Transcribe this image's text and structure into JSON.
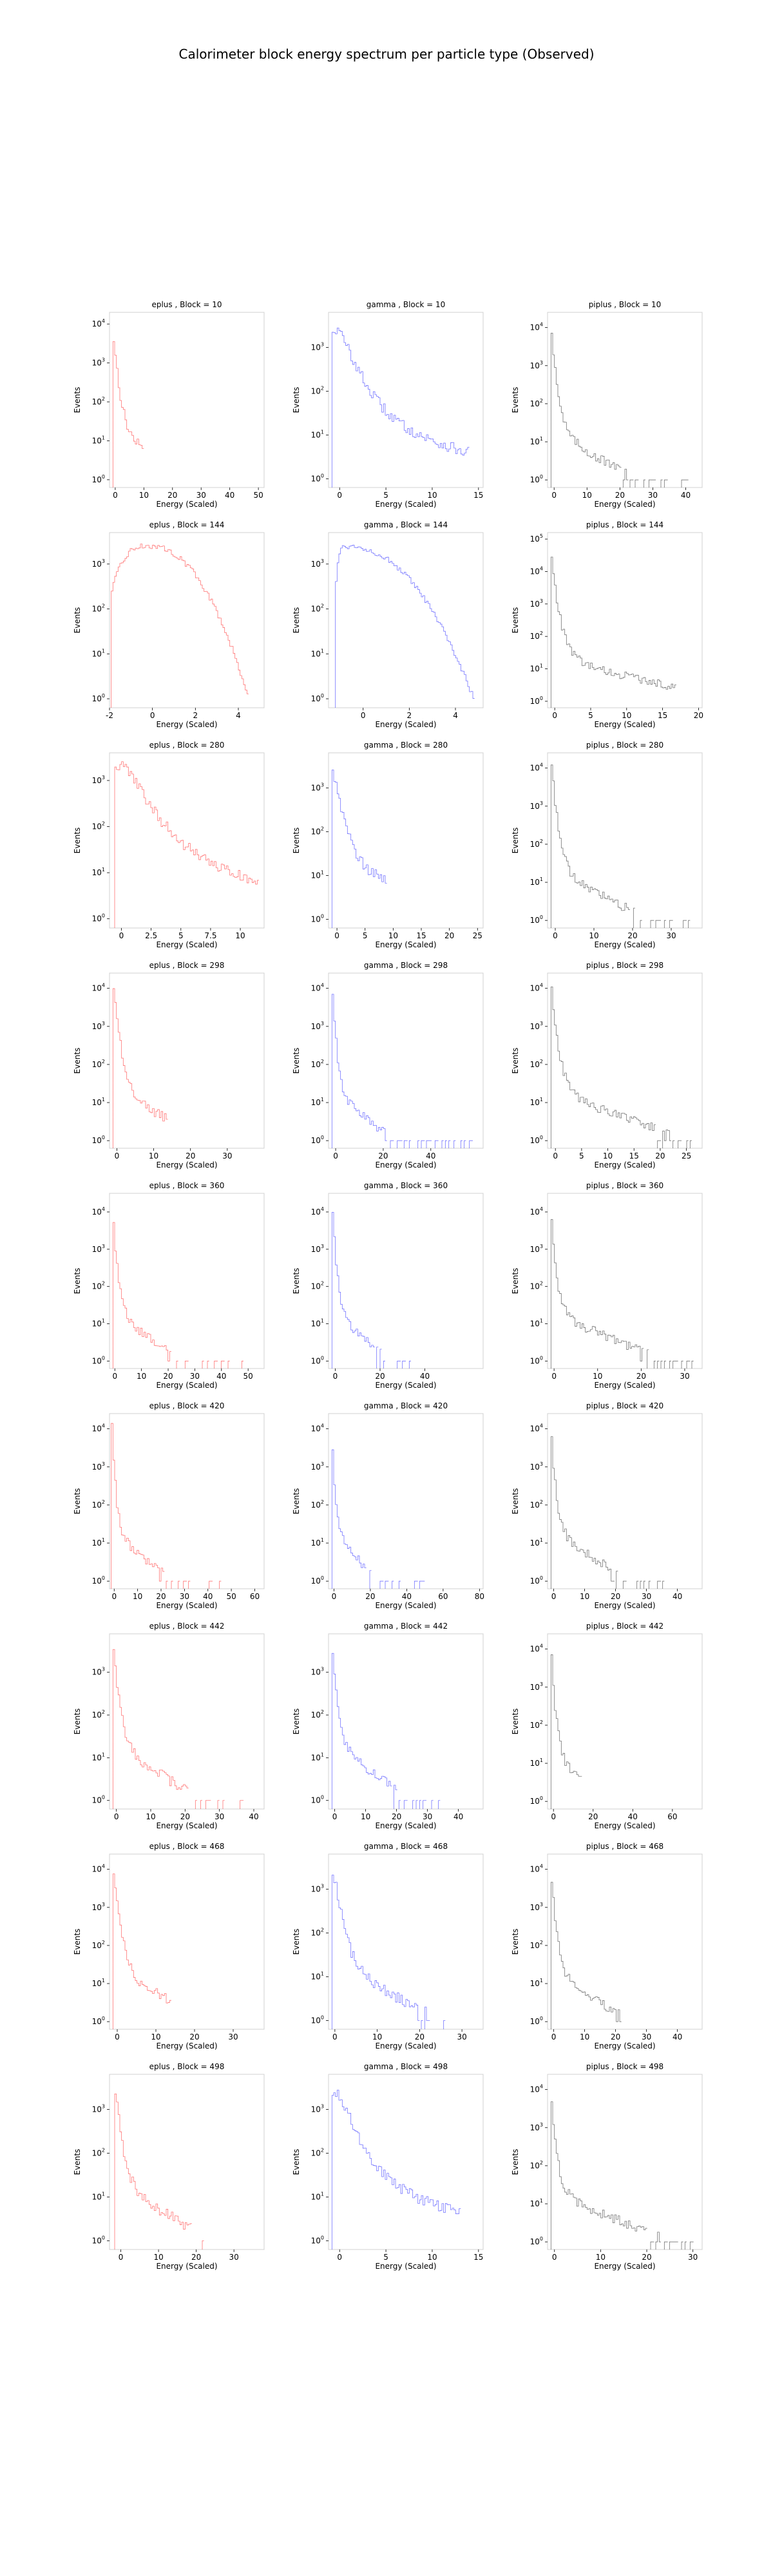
{
  "title": "Calorimeter block energy spectrum per particle type (Observed)",
  "colors": {
    "eplus": "#ff0000",
    "gamma": "#0000ff",
    "piplus": "#000000"
  },
  "chart_data": [
    {
      "type": "histogram",
      "title": "eplus , Block = 10",
      "xlabel": "Energy (Scaled)",
      "ylabel": "Events",
      "yscale": "log",
      "xlim": [
        -2,
        52
      ],
      "xticks": [
        0,
        10,
        20,
        30,
        40,
        50
      ],
      "yexp": [
        0,
        1,
        2,
        3,
        4
      ],
      "ymax": 4.3,
      "particle": "eplus",
      "shape": {
        "peak": 3.9,
        "start": -1,
        "decay": 0.5,
        "tail": 10
      }
    },
    {
      "type": "histogram",
      "title": "gamma , Block = 10",
      "xlabel": "Energy (Scaled)",
      "ylabel": "Events",
      "yscale": "log",
      "xlim": [
        -1.2,
        15.5
      ],
      "xticks": [
        0,
        5,
        10,
        15
      ],
      "yexp": [
        0,
        1,
        2,
        3
      ],
      "ymax": 3.8,
      "particle": "gamma",
      "shape": {
        "peak": 3.4,
        "start": -0.8,
        "decay": 0.35,
        "tail": 14
      }
    },
    {
      "type": "histogram",
      "title": "piplus , Block = 10",
      "xlabel": "Energy (Scaled)",
      "ylabel": "Events",
      "yscale": "log",
      "xlim": [
        -2,
        45
      ],
      "xticks": [
        0,
        10,
        20,
        30,
        40
      ],
      "yexp": [
        0,
        1,
        2,
        3,
        4
      ],
      "ymax": 4.4,
      "particle": "piplus",
      "shape": {
        "peak": 4.2,
        "start": -1,
        "decay": 0.6,
        "tail": 42
      }
    },
    {
      "type": "histogram",
      "title": "eplus , Block = 144",
      "xlabel": "Energy (Scaled)",
      "ylabel": "Events",
      "yscale": "log",
      "xlim": [
        -2,
        5.2
      ],
      "xticks": [
        -2,
        0,
        2,
        4
      ],
      "yexp": [
        0,
        1,
        2,
        3
      ],
      "ymax": 3.7,
      "particle": "eplus",
      "shape": {
        "kind": "dome",
        "peak": 3.4,
        "start": -1.9,
        "end": 4.5,
        "center": -0.2
      }
    },
    {
      "type": "histogram",
      "title": "gamma , Block = 144",
      "xlabel": "Energy (Scaled)",
      "ylabel": "Events",
      "yscale": "log",
      "xlim": [
        -1.5,
        5.2
      ],
      "xticks": [
        0,
        2,
        4
      ],
      "yexp": [
        0,
        1,
        2,
        3
      ],
      "ymax": 3.7,
      "particle": "gamma",
      "shape": {
        "kind": "dome",
        "peak": 3.4,
        "start": -1.2,
        "end": 4.8,
        "center": -0.8
      }
    },
    {
      "type": "histogram",
      "title": "piplus , Block = 144",
      "xlabel": "Energy (Scaled)",
      "ylabel": "Events",
      "yscale": "log",
      "xlim": [
        -1,
        20.5
      ],
      "xticks": [
        0,
        5,
        10,
        15,
        20
      ],
      "yexp": [
        0,
        1,
        2,
        3,
        4,
        5
      ],
      "ymax": 5.2,
      "particle": "piplus",
      "shape": {
        "peak": 4.7,
        "start": -0.5,
        "decay": 0.9,
        "tail": 17
      }
    },
    {
      "type": "histogram",
      "title": "eplus , Block = 280",
      "xlabel": "Energy (Scaled)",
      "ylabel": "Events",
      "yscale": "log",
      "xlim": [
        -1,
        12
      ],
      "xticks": [
        0,
        2.5,
        5,
        7.5,
        10
      ],
      "yexp": [
        0,
        1,
        2,
        3
      ],
      "ymax": 3.6,
      "particle": "eplus",
      "shape": {
        "peak": 3.3,
        "start": -0.6,
        "decay": 0.32,
        "tail": 11.5
      }
    },
    {
      "type": "histogram",
      "title": "gamma , Block = 280",
      "xlabel": "Energy (Scaled)",
      "ylabel": "Events",
      "yscale": "log",
      "xlim": [
        -1.5,
        26
      ],
      "xticks": [
        0,
        5,
        10,
        15,
        20,
        25
      ],
      "yexp": [
        0,
        1,
        2,
        3
      ],
      "ymax": 3.8,
      "particle": "gamma",
      "shape": {
        "peak": 3.5,
        "start": -1,
        "decay": 0.5,
        "tail": 9
      }
    },
    {
      "type": "histogram",
      "title": "piplus , Block = 280",
      "xlabel": "Energy (Scaled)",
      "ylabel": "Events",
      "yscale": "log",
      "xlim": [
        -2,
        38
      ],
      "xticks": [
        0,
        10,
        20,
        30
      ],
      "yexp": [
        0,
        1,
        2,
        3,
        4
      ],
      "ymax": 4.4,
      "particle": "piplus",
      "shape": {
        "peak": 4.2,
        "start": -1,
        "decay": 0.65,
        "tail": 36
      }
    },
    {
      "type": "histogram",
      "title": "eplus , Block = 298",
      "xlabel": "Energy (Scaled)",
      "ylabel": "Events",
      "yscale": "log",
      "xlim": [
        -2,
        40
      ],
      "xticks": [
        0,
        10,
        20,
        30
      ],
      "yexp": [
        0,
        1,
        2,
        3,
        4
      ],
      "ymax": 4.4,
      "particle": "eplus",
      "shape": {
        "peak": 4.1,
        "start": -1,
        "decay": 0.55,
        "tail": 14
      }
    },
    {
      "type": "histogram",
      "title": "gamma , Block = 298",
      "xlabel": "Energy (Scaled)",
      "ylabel": "Events",
      "yscale": "log",
      "xlim": [
        -3,
        62
      ],
      "xticks": [
        0,
        20,
        40
      ],
      "yexp": [
        0,
        1,
        2,
        3,
        4
      ],
      "ymax": 4.4,
      "particle": "gamma",
      "shape": {
        "peak": 4.1,
        "start": -1.5,
        "decay": 0.6,
        "tail": 60
      }
    },
    {
      "type": "histogram",
      "title": "piplus , Block = 298",
      "xlabel": "Energy (Scaled)",
      "ylabel": "Events",
      "yscale": "log",
      "xlim": [
        -1.5,
        28
      ],
      "xticks": [
        0,
        5,
        10,
        15,
        20,
        25
      ],
      "yexp": [
        0,
        1,
        2,
        3,
        4
      ],
      "ymax": 4.4,
      "particle": "piplus",
      "shape": {
        "peak": 4.2,
        "start": -0.8,
        "decay": 0.8,
        "tail": 26
      }
    },
    {
      "type": "histogram",
      "title": "eplus , Block = 360",
      "xlabel": "Energy (Scaled)",
      "ylabel": "Events",
      "yscale": "log",
      "xlim": [
        -2,
        56
      ],
      "xticks": [
        0,
        10,
        20,
        30,
        40,
        50
      ],
      "yexp": [
        0,
        1,
        2,
        3,
        4
      ],
      "ymax": 4.5,
      "particle": "eplus",
      "shape": {
        "peak": 4.3,
        "start": -1,
        "decay": 0.6,
        "tail": 52
      }
    },
    {
      "type": "histogram",
      "title": "gamma , Block = 360",
      "xlabel": "Energy (Scaled)",
      "ylabel": "Events",
      "yscale": "log",
      "xlim": [
        -3,
        66
      ],
      "xticks": [
        0,
        20,
        40
      ],
      "yexp": [
        0,
        1,
        2,
        3,
        4
      ],
      "ymax": 4.5,
      "particle": "gamma",
      "shape": {
        "peak": 4.3,
        "start": -1.5,
        "decay": 0.55,
        "tail": 34
      }
    },
    {
      "type": "histogram",
      "title": "piplus , Block = 360",
      "xlabel": "Energy (Scaled)",
      "ylabel": "Events",
      "yscale": "log",
      "xlim": [
        -1.5,
        34
      ],
      "xticks": [
        0,
        10,
        20,
        30
      ],
      "yexp": [
        0,
        1,
        2,
        3,
        4
      ],
      "ymax": 4.5,
      "particle": "piplus",
      "shape": {
        "peak": 4.3,
        "start": -0.8,
        "decay": 0.9,
        "tail": 32
      }
    },
    {
      "type": "histogram",
      "title": "eplus , Block = 420",
      "xlabel": "Energy (Scaled)",
      "ylabel": "Events",
      "yscale": "log",
      "xlim": [
        -2,
        64
      ],
      "xticks": [
        0,
        10,
        20,
        30,
        40,
        50,
        60
      ],
      "yexp": [
        0,
        1,
        2,
        3,
        4
      ],
      "ymax": 4.4,
      "particle": "eplus",
      "shape": {
        "peak": 4.2,
        "start": -1,
        "decay": 0.7,
        "tail": 46
      }
    },
    {
      "type": "histogram",
      "title": "gamma , Block = 420",
      "xlabel": "Energy (Scaled)",
      "ylabel": "Events",
      "yscale": "log",
      "xlim": [
        -3,
        82
      ],
      "xticks": [
        0,
        20,
        40,
        60,
        80
      ],
      "yexp": [
        0,
        1,
        2,
        3,
        4
      ],
      "ymax": 4.4,
      "particle": "gamma",
      "shape": {
        "peak": 4.2,
        "start": -1.5,
        "decay": 0.6,
        "tail": 50
      }
    },
    {
      "type": "histogram",
      "title": "piplus , Block = 420",
      "xlabel": "Energy (Scaled)",
      "ylabel": "Events",
      "yscale": "log",
      "xlim": [
        -2,
        48
      ],
      "xticks": [
        0,
        10,
        20,
        30,
        40
      ],
      "yexp": [
        0,
        1,
        2,
        3,
        4
      ],
      "ymax": 4.4,
      "particle": "piplus",
      "shape": {
        "peak": 4.2,
        "start": -1,
        "decay": 0.7,
        "tail": 36
      }
    },
    {
      "type": "histogram",
      "title": "eplus , Block = 442",
      "xlabel": "Energy (Scaled)",
      "ylabel": "Events",
      "yscale": "log",
      "xlim": [
        -2,
        43
      ],
      "xticks": [
        0,
        10,
        20,
        30,
        40
      ],
      "yexp": [
        0,
        1,
        2,
        3
      ],
      "ymax": 3.9,
      "particle": "eplus",
      "shape": {
        "peak": 3.6,
        "start": -1,
        "decay": 0.6,
        "tail": 40
      }
    },
    {
      "type": "histogram",
      "title": "gamma , Block = 442",
      "xlabel": "Energy (Scaled)",
      "ylabel": "Events",
      "yscale": "log",
      "xlim": [
        -2,
        48
      ],
      "xticks": [
        0,
        10,
        20,
        30,
        40
      ],
      "yexp": [
        0,
        1,
        2,
        3
      ],
      "ymax": 3.9,
      "particle": "gamma",
      "shape": {
        "peak": 3.6,
        "start": -1,
        "decay": 0.6,
        "tail": 34
      }
    },
    {
      "type": "histogram",
      "title": "piplus , Block = 442",
      "xlabel": "Energy (Scaled)",
      "ylabel": "Events",
      "yscale": "log",
      "xlim": [
        -3,
        75
      ],
      "xticks": [
        0,
        20,
        40,
        60
      ],
      "yexp": [
        0,
        1,
        2,
        3,
        4
      ],
      "ymax": 4.4,
      "particle": "piplus",
      "shape": {
        "peak": 4.2,
        "start": -1.5,
        "decay": 0.5,
        "tail": 14
      }
    },
    {
      "type": "histogram",
      "title": "eplus , Block = 468",
      "xlabel": "Energy (Scaled)",
      "ylabel": "Events",
      "yscale": "log",
      "xlim": [
        -2,
        38
      ],
      "xticks": [
        0,
        10,
        20,
        30
      ],
      "yexp": [
        0,
        1,
        2,
        3,
        4
      ],
      "ymax": 4.4,
      "particle": "eplus",
      "shape": {
        "peak": 4.1,
        "start": -1,
        "decay": 0.6,
        "tail": 14
      }
    },
    {
      "type": "histogram",
      "title": "gamma , Block = 468",
      "xlabel": "Energy (Scaled)",
      "ylabel": "Events",
      "yscale": "log",
      "xlim": [
        -1.5,
        35
      ],
      "xticks": [
        0,
        10,
        20,
        30
      ],
      "yexp": [
        0,
        1,
        2,
        3
      ],
      "ymax": 3.8,
      "particle": "gamma",
      "shape": {
        "peak": 3.5,
        "start": -0.8,
        "decay": 0.45,
        "tail": 26
      }
    },
    {
      "type": "histogram",
      "title": "piplus , Block = 468",
      "xlabel": "Energy (Scaled)",
      "ylabel": "Events",
      "yscale": "log",
      "xlim": [
        -2,
        48
      ],
      "xticks": [
        0,
        10,
        20,
        30,
        40
      ],
      "yexp": [
        0,
        1,
        2,
        3,
        4
      ],
      "ymax": 4.4,
      "particle": "piplus",
      "shape": {
        "peak": 4.2,
        "start": -1,
        "decay": 0.65,
        "tail": 22
      }
    },
    {
      "type": "histogram",
      "title": "eplus , Block = 498",
      "xlabel": "Energy (Scaled)",
      "ylabel": "Events",
      "yscale": "log",
      "xlim": [
        -3,
        38
      ],
      "xticks": [
        0,
        10,
        20,
        30
      ],
      "yexp": [
        0,
        1,
        2,
        3
      ],
      "ymax": 3.8,
      "particle": "eplus",
      "shape": {
        "peak": 3.5,
        "start": -1.5,
        "decay": 0.6,
        "tail": 22
      }
    },
    {
      "type": "histogram",
      "title": "gamma , Block = 498",
      "xlabel": "Energy (Scaled)",
      "ylabel": "Events",
      "yscale": "log",
      "xlim": [
        -1.2,
        15.5
      ],
      "xticks": [
        0,
        5,
        10,
        15
      ],
      "yexp": [
        0,
        1,
        2,
        3
      ],
      "ymax": 3.8,
      "particle": "gamma",
      "shape": {
        "peak": 3.4,
        "start": -0.8,
        "decay": 0.38,
        "tail": 13
      }
    },
    {
      "type": "histogram",
      "title": "piplus , Block = 498",
      "xlabel": "Energy (Scaled)",
      "ylabel": "Events",
      "yscale": "log",
      "xlim": [
        -1.5,
        32
      ],
      "xticks": [
        0,
        10,
        20,
        30
      ],
      "yexp": [
        0,
        1,
        2,
        3,
        4
      ],
      "ymax": 4.4,
      "particle": "piplus",
      "shape": {
        "peak": 4.2,
        "start": -0.8,
        "decay": 0.9,
        "tail": 30
      }
    }
  ]
}
